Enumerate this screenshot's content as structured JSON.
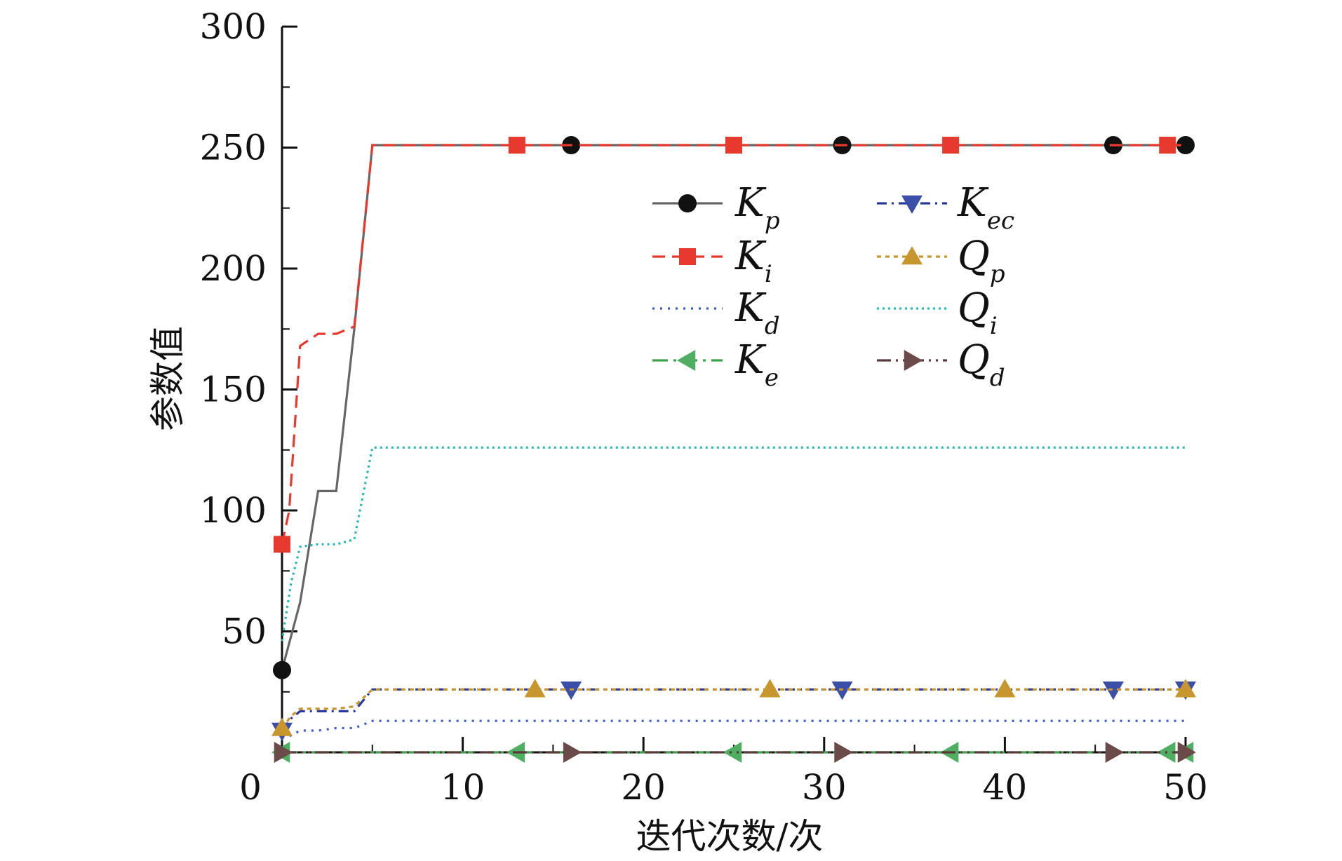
{
  "chart_data": {
    "type": "line",
    "title": "",
    "xlabel": "迭代次数/次",
    "ylabel": "参数值",
    "xlim": [
      0,
      50
    ],
    "ylim": [
      0,
      300
    ],
    "xticks": [
      0,
      10,
      20,
      30,
      40,
      50
    ],
    "yticks": [
      50,
      100,
      150,
      200,
      250,
      300
    ],
    "grid": false,
    "legend_position": "top-right",
    "series": [
      {
        "name": "Kp",
        "base": "K",
        "sub": "p",
        "color": "#666666",
        "dash": "",
        "marker": "circle",
        "marker_color": "#111111",
        "x": [
          0,
          1,
          2,
          3,
          4,
          5,
          6,
          16,
          31,
          46,
          49.4,
          50
        ],
        "y": [
          34,
          62,
          108,
          108,
          175,
          251,
          251,
          251,
          251,
          251,
          251,
          251
        ],
        "marker_x": [
          0,
          16,
          31,
          46,
          50
        ]
      },
      {
        "name": "Ki",
        "base": "K",
        "sub": "i",
        "color": "#e8392f",
        "dash": "18,10",
        "marker": "square",
        "marker_color": "#e8392f",
        "x": [
          0,
          0.4,
          1,
          2,
          3,
          4,
          5,
          6,
          13,
          25,
          37,
          49,
          50
        ],
        "y": [
          86,
          100,
          168,
          173,
          173,
          176,
          251,
          251,
          251,
          251,
          251,
          251,
          251
        ],
        "marker_x": [
          0,
          13,
          25,
          37,
          49
        ]
      },
      {
        "name": "Kd",
        "base": "K",
        "sub": "d",
        "color": "#3b5bc4",
        "dash": "3,8",
        "marker": "none",
        "marker_color": "#3b5bc4",
        "x": [
          0,
          0.5,
          1,
          2,
          3,
          4,
          5,
          50
        ],
        "y": [
          6,
          7,
          9,
          9,
          10,
          10,
          13,
          13
        ],
        "marker_x": []
      },
      {
        "name": "Ke",
        "base": "K",
        "sub": "e",
        "color": "#3aa34a",
        "dash": "22,8,4,8",
        "marker": "triangle-left",
        "marker_color": "#4fae62",
        "x": [
          0,
          50
        ],
        "y": [
          0,
          0
        ],
        "marker_x": [
          0,
          13,
          25,
          37,
          49,
          50
        ]
      },
      {
        "name": "Kec",
        "base": "K",
        "sub": "ec",
        "color": "#2a3a9a",
        "dash": "14,7,3,7",
        "marker": "triangle-down",
        "marker_color": "#3b4ea8",
        "x": [
          0,
          0.5,
          1,
          2,
          3,
          4,
          5,
          16,
          31,
          46,
          50
        ],
        "y": [
          9,
          14,
          17,
          17,
          17,
          17,
          26,
          26,
          26,
          26,
          26
        ],
        "marker_x": [
          0,
          16,
          31,
          46,
          50
        ]
      },
      {
        "name": "Qp",
        "base": "Q",
        "sub": "p",
        "color": "#c8962e",
        "dash": "6,6",
        "marker": "triangle-up",
        "marker_color": "#c8962e",
        "x": [
          0,
          0.5,
          1,
          2,
          3,
          4,
          5,
          50
        ],
        "y": [
          10,
          15,
          18,
          18,
          18,
          19,
          26,
          26
        ],
        "marker_x": [
          0,
          14,
          27,
          40,
          50
        ]
      },
      {
        "name": "Qi",
        "base": "Q",
        "sub": "i",
        "color": "#2ab5b5",
        "dash": "3,5",
        "marker": "none",
        "marker_color": "#2ab5b5",
        "x": [
          0,
          0.5,
          1,
          2,
          3,
          4,
          5,
          50
        ],
        "y": [
          46,
          70,
          85,
          86,
          86,
          88,
          126,
          126
        ],
        "marker_x": []
      },
      {
        "name": "Qd",
        "base": "Q",
        "sub": "d",
        "color": "#5a3a3a",
        "dash": "20,7,3,7,3,7",
        "marker": "triangle-right",
        "marker_color": "#6b4a4a",
        "x": [
          0,
          50
        ],
        "y": [
          0,
          0
        ],
        "marker_x": [
          0,
          16,
          31,
          46,
          50
        ]
      }
    ]
  }
}
